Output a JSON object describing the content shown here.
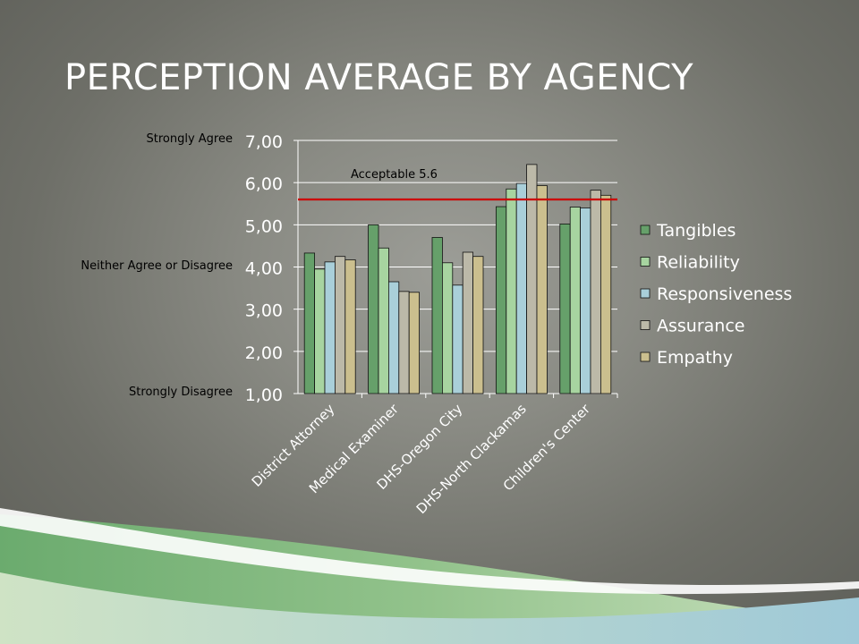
{
  "slide": {
    "title": "PERCEPTION AVERAGE BY AGENCY",
    "scale_labels": {
      "top": "Strongly Agree",
      "middle": "Neither Agree or Disagree",
      "bottom": "Strongly Disagree"
    }
  },
  "colors": {
    "Tangibles": "#66a06a",
    "Reliability": "#a7d4a0",
    "Responsiveness": "#a9cfd9",
    "Assurance": "#bcb9a8",
    "Empathy": "#cbbf8e",
    "threshold": "#cc0000"
  },
  "chart_data": {
    "type": "bar",
    "categories": [
      "District Attorney",
      "Medical Examiner",
      "DHS-Oregon City",
      "DHS-North Clackamas",
      "Children's Center"
    ],
    "series": [
      {
        "name": "Tangibles",
        "values": [
          4.33,
          5.0,
          4.7,
          5.43,
          5.02
        ]
      },
      {
        "name": "Reliability",
        "values": [
          3.95,
          4.45,
          4.1,
          5.85,
          5.42
        ]
      },
      {
        "name": "Responsiveness",
        "values": [
          4.12,
          3.65,
          3.57,
          5.98,
          5.4
        ]
      },
      {
        "name": "Assurance",
        "values": [
          4.25,
          3.42,
          4.35,
          6.43,
          5.82
        ]
      },
      {
        "name": "Empathy",
        "values": [
          4.17,
          3.4,
          4.25,
          5.93,
          5.7
        ]
      }
    ],
    "ylim": [
      1,
      7
    ],
    "yticks": [
      "1,00",
      "2,00",
      "3,00",
      "4,00",
      "5,00",
      "6,00",
      "7,00"
    ],
    "grid": true,
    "legend": "right",
    "reference_line": {
      "value": 5.6,
      "label": "Acceptable 5.6"
    }
  }
}
